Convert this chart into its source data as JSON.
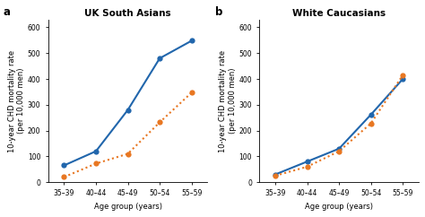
{
  "x_labels": [
    "35–39",
    "40–44",
    "45–49",
    "50–54",
    "55–59"
  ],
  "x_vals": [
    0,
    1,
    2,
    3,
    4
  ],
  "panel_a_title": "UK South Asians",
  "panel_a_blue": [
    65,
    120,
    280,
    480,
    548
  ],
  "panel_a_orange": [
    20,
    72,
    110,
    232,
    347
  ],
  "panel_b_title": "White Caucasians",
  "panel_b_blue": [
    30,
    80,
    130,
    262,
    400
  ],
  "panel_b_orange": [
    25,
    60,
    120,
    228,
    415
  ],
  "ylabel": "10-year CHD mortality rate\n(per 10,000 men)",
  "xlabel": "Age group (years)",
  "ylim": [
    0,
    630
  ],
  "yticks": [
    0,
    100,
    200,
    300,
    400,
    500,
    600
  ],
  "blue_color": "#2166ac",
  "orange_color": "#e87722",
  "panel_a_label": "a",
  "panel_b_label": "b",
  "title_fontsize": 7.5,
  "label_fontsize": 6.0,
  "tick_fontsize": 5.5,
  "panel_label_fontsize": 8.5,
  "marker_size": 4.5,
  "line_width": 1.5
}
